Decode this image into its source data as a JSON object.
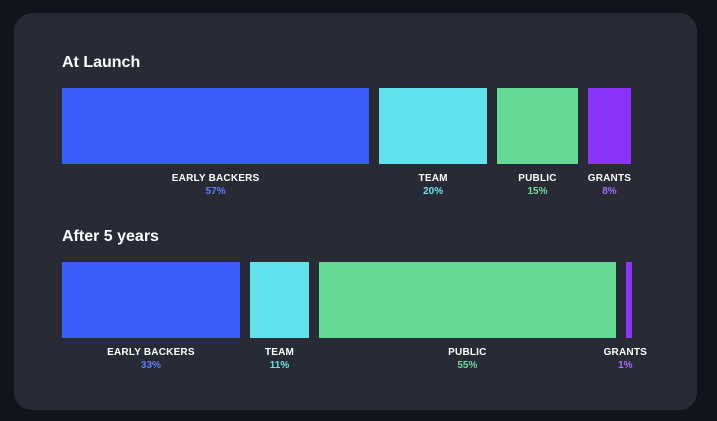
{
  "chart_data": [
    {
      "type": "bar",
      "orientation": "horizontal-stacked",
      "title": "At Launch",
      "categories": [
        "EARLY BACKERS",
        "TEAM",
        "PUBLIC",
        "GRANTS"
      ],
      "values": [
        57,
        20,
        15,
        8
      ],
      "value_labels": [
        "57%",
        "20%",
        "15%",
        "8%"
      ],
      "unit": "%"
    },
    {
      "type": "bar",
      "orientation": "horizontal-stacked",
      "title": "After 5 years",
      "categories": [
        "EARLY BACKERS",
        "TEAM",
        "PUBLIC",
        "GRANTS"
      ],
      "values": [
        33,
        11,
        55,
        1
      ],
      "value_labels": [
        "33%",
        "11%",
        "55%",
        "1%"
      ],
      "unit": "%"
    }
  ],
  "colors": {
    "EARLY BACKERS": "#3a5cf9",
    "TEAM": "#61e2ee",
    "PUBLIC": "#63db94",
    "GRANTS": "#8a33fb",
    "pct_EARLY BACKERS": "#5f7cf6",
    "pct_TEAM": "#6ee0ea",
    "pct_PUBLIC": "#6ed99a",
    "pct_GRANTS": "#a86af5"
  }
}
